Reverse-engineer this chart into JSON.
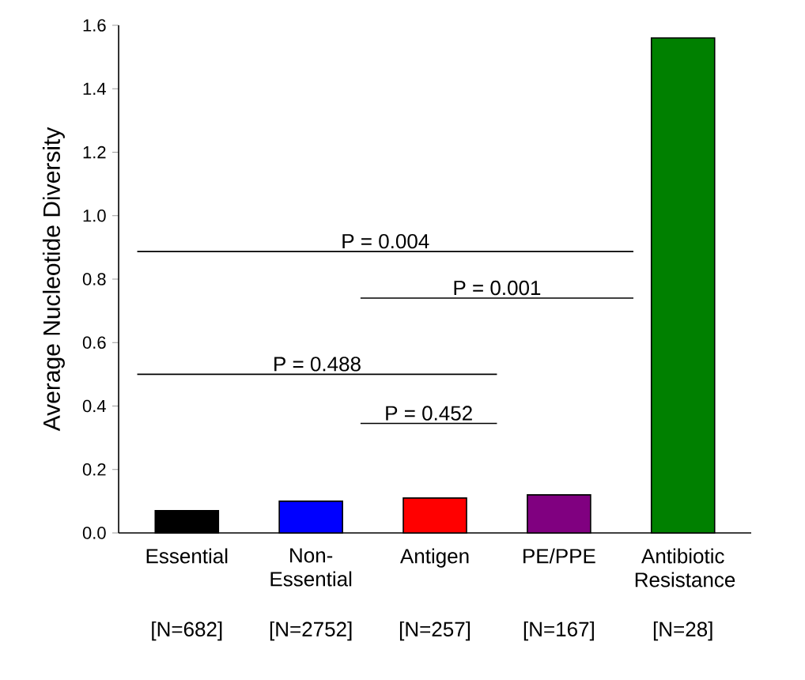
{
  "chart_data": {
    "type": "bar",
    "ylabel": "Average Nucleotide Diversity",
    "categories": [
      "Essential",
      "Non-Essential",
      "Antigen",
      "PE/PPE",
      "Antibiotic Resistance"
    ],
    "values": [
      0.07,
      0.1,
      0.11,
      0.12,
      1.56
    ],
    "colors": [
      "#000000",
      "#0000ff",
      "#ff0000",
      "#800080",
      "#008000"
    ],
    "ylim": [
      0,
      1.6
    ],
    "yticks": [
      {
        "value": 0,
        "label": "0.0"
      },
      0.2,
      0.4,
      0.6,
      0.8,
      {
        "value": 1,
        "label": "1.0"
      },
      1.2,
      1.4,
      1.6
    ],
    "annotations": [
      "P = 0.004",
      "P = 0.001",
      "P = 0.488",
      "P = 0.452",
      "[N=682]",
      "[N=2752]",
      "[N=257]",
      "[N=167]",
      "[N=28]"
    ]
  }
}
